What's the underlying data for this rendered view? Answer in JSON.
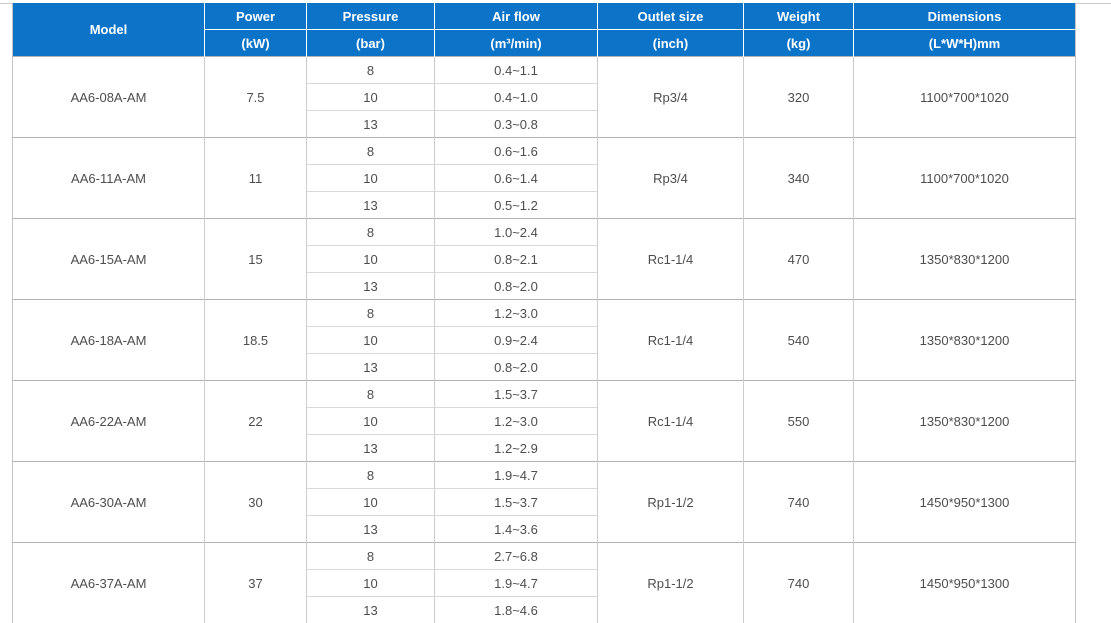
{
  "colors": {
    "header_bg": "#0b74c8",
    "header_text": "#ffffff",
    "body_text": "#4d4d4d",
    "group_border": "#b3b3b3",
    "subrow_border": "#d8d8d8",
    "column_border": "#cccccc",
    "outer_border": "#c3c3c3"
  },
  "header": {
    "columns": [
      {
        "label": "Model",
        "unit": ""
      },
      {
        "label": "Power",
        "unit": "(kW)"
      },
      {
        "label": "Pressure",
        "unit": "(bar)"
      },
      {
        "label": "Air flow",
        "unit": "(m³/min)"
      },
      {
        "label": "Outlet size",
        "unit": "(inch)"
      },
      {
        "label": "Weight",
        "unit": "(kg)"
      },
      {
        "label": "Dimensions",
        "unit": "(L*W*H)mm"
      }
    ]
  },
  "chart_data": {
    "type": "table",
    "title": "",
    "columns": [
      "Model",
      "Power (kW)",
      "Pressure (bar)",
      "Air flow (m³/min)",
      "Outlet size (inch)",
      "Weight (kg)",
      "Dimensions (L*W*H)mm"
    ],
    "rows": [
      {
        "model": "AA6-08A-AM",
        "power": "7.5",
        "pressures": [
          "8",
          "10",
          "13"
        ],
        "airflows": [
          "0.4~1.1",
          "0.4~1.0",
          "0.3~0.8"
        ],
        "outlet": "Rp3/4",
        "weight": "320",
        "dimensions": "1100*700*1020"
      },
      {
        "model": "AA6-11A-AM",
        "power": "11",
        "pressures": [
          "8",
          "10",
          "13"
        ],
        "airflows": [
          "0.6~1.6",
          "0.6~1.4",
          "0.5~1.2"
        ],
        "outlet": "Rp3/4",
        "weight": "340",
        "dimensions": "1100*700*1020"
      },
      {
        "model": "AA6-15A-AM",
        "power": "15",
        "pressures": [
          "8",
          "10",
          "13"
        ],
        "airflows": [
          "1.0~2.4",
          "0.8~2.1",
          "0.8~2.0"
        ],
        "outlet": "Rc1-1/4",
        "weight": "470",
        "dimensions": "1350*830*1200"
      },
      {
        "model": "AA6-18A-AM",
        "power": "18.5",
        "pressures": [
          "8",
          "10",
          "13"
        ],
        "airflows": [
          "1.2~3.0",
          "0.9~2.4",
          "0.8~2.0"
        ],
        "outlet": "Rc1-1/4",
        "weight": "540",
        "dimensions": "1350*830*1200"
      },
      {
        "model": "AA6-22A-AM",
        "power": "22",
        "pressures": [
          "8",
          "10",
          "13"
        ],
        "airflows": [
          "1.5~3.7",
          "1.2~3.0",
          "1.2~2.9"
        ],
        "outlet": "Rc1-1/4",
        "weight": "550",
        "dimensions": "1350*830*1200"
      },
      {
        "model": "AA6-30A-AM",
        "power": "30",
        "pressures": [
          "8",
          "10",
          "13"
        ],
        "airflows": [
          "1.9~4.7",
          "1.5~3.7",
          "1.4~3.6"
        ],
        "outlet": "Rp1-1/2",
        "weight": "740",
        "dimensions": "1450*950*1300"
      },
      {
        "model": "AA6-37A-AM",
        "power": "37",
        "pressures": [
          "8",
          "10",
          "13"
        ],
        "airflows": [
          "2.7~6.8",
          "1.9~4.7",
          "1.8~4.6"
        ],
        "outlet": "Rp1-1/2",
        "weight": "740",
        "dimensions": "1450*950*1300"
      }
    ]
  }
}
